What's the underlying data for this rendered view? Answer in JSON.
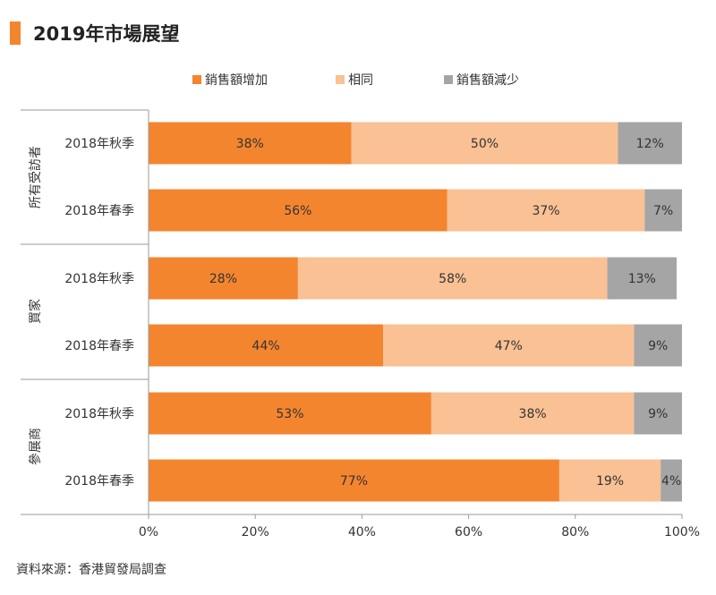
{
  "title": "2019年市場展望",
  "colors": {
    "increase": "#f4852f",
    "same": "#f9c194",
    "decrease": "#a5a5a6",
    "accent": "#f4852f"
  },
  "chart_data": {
    "type": "bar",
    "orientation": "horizontal",
    "stacked": true,
    "series": [
      {
        "name": "銷售額增加",
        "values": [
          38,
          56,
          28,
          44,
          53,
          77
        ]
      },
      {
        "name": "相同",
        "values": [
          50,
          37,
          58,
          47,
          38,
          19
        ]
      },
      {
        "name": "銷售額減少",
        "values": [
          12,
          7,
          13,
          9,
          9,
          4
        ]
      }
    ],
    "groups": [
      {
        "name": "所有受訪者",
        "categories": [
          "2018年秋季",
          "2018年春季"
        ]
      },
      {
        "name": "買家",
        "categories": [
          "2018年秋季",
          "2018年春季"
        ]
      },
      {
        "name": "參展商",
        "categories": [
          "2018年秋季",
          "2018年春季"
        ]
      }
    ],
    "x_ticks": [
      "0%",
      "20%",
      "40%",
      "60%",
      "80%",
      "100%"
    ],
    "xlim": [
      0,
      100
    ],
    "grid": false,
    "legend_position": "top",
    "data_label_suffix": "%"
  },
  "source": "資料來源：香港貿發局調查"
}
